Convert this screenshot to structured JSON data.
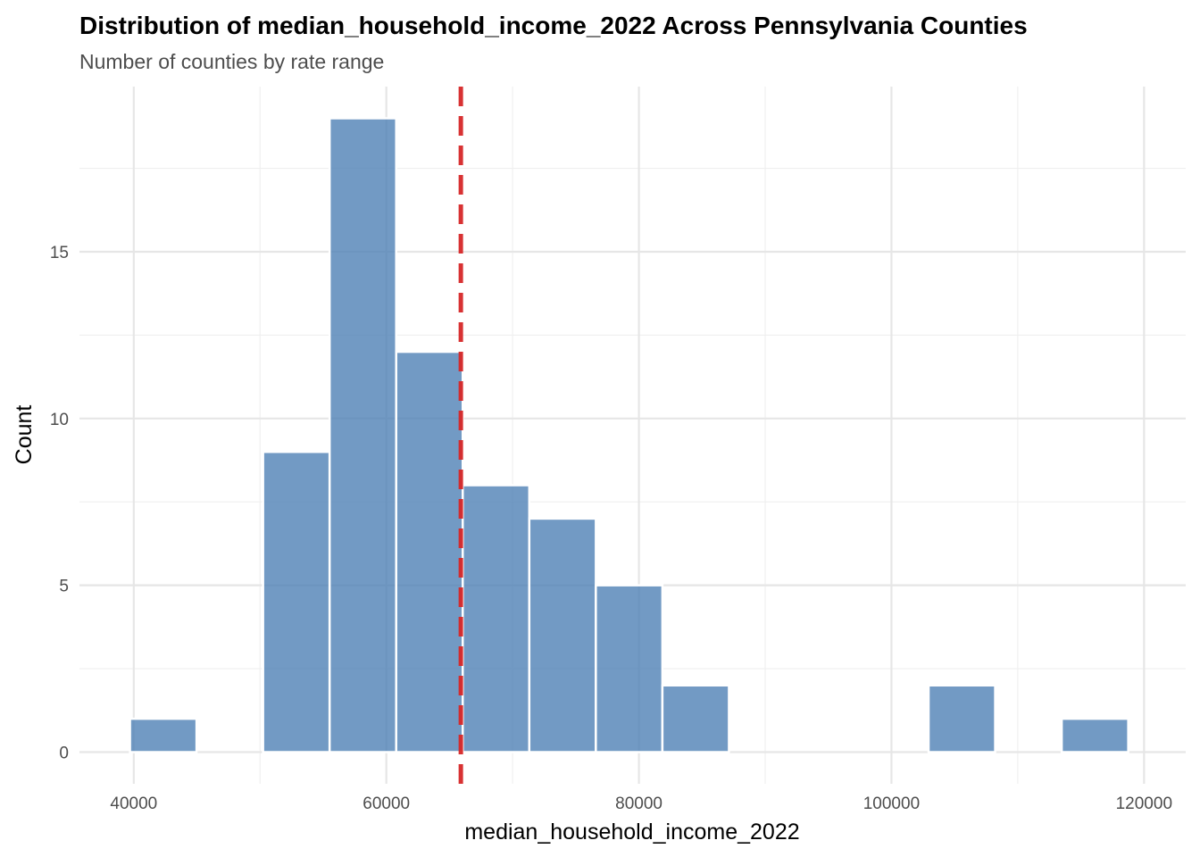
{
  "chart_data": {
    "type": "bar",
    "title": "Distribution of median_household_income_2022 Across Pennsylvania Counties",
    "subtitle": "Number of counties by rate range",
    "xlabel": "median_household_income_2022",
    "ylabel": "Count",
    "xlim": [
      35700,
      123300
    ],
    "ylim": [
      -0.95,
      19.95
    ],
    "x_ticks": [
      40000,
      60000,
      80000,
      100000,
      120000
    ],
    "x_tick_labels": [
      "40000",
      "60000",
      "80000",
      "100000",
      "120000"
    ],
    "x_minor_ticks": [
      50000,
      70000,
      90000,
      110000
    ],
    "y_ticks": [
      0,
      5,
      10,
      15
    ],
    "y_tick_labels": [
      "0",
      "5",
      "10",
      "15"
    ],
    "y_minor_ticks": [
      2.5,
      7.5,
      12.5,
      17.5
    ],
    "bin_width": 5270,
    "bins": [
      {
        "x_start": 39700,
        "x_end": 44970,
        "count": 1
      },
      {
        "x_start": 44970,
        "x_end": 50240,
        "count": 0
      },
      {
        "x_start": 50240,
        "x_end": 55510,
        "count": 9
      },
      {
        "x_start": 55510,
        "x_end": 60780,
        "count": 19
      },
      {
        "x_start": 60780,
        "x_end": 66050,
        "count": 12
      },
      {
        "x_start": 66050,
        "x_end": 71320,
        "count": 8
      },
      {
        "x_start": 71320,
        "x_end": 76590,
        "count": 7
      },
      {
        "x_start": 76590,
        "x_end": 81860,
        "count": 5
      },
      {
        "x_start": 81860,
        "x_end": 87130,
        "count": 2
      },
      {
        "x_start": 87130,
        "x_end": 92400,
        "count": 0
      },
      {
        "x_start": 92400,
        "x_end": 97670,
        "count": 0
      },
      {
        "x_start": 97670,
        "x_end": 102940,
        "count": 0
      },
      {
        "x_start": 102940,
        "x_end": 108210,
        "count": 2
      },
      {
        "x_start": 108210,
        "x_end": 113480,
        "count": 0
      },
      {
        "x_start": 113480,
        "x_end": 118750,
        "count": 1
      }
    ],
    "reference_line": {
      "x": 65900,
      "style": "dashed",
      "color": "#d62728"
    },
    "bar_color": "#4a7eb4",
    "bar_opacity": 0.78,
    "bar_edge_color": "#ffffff",
    "grid": true,
    "legend": "none"
  }
}
